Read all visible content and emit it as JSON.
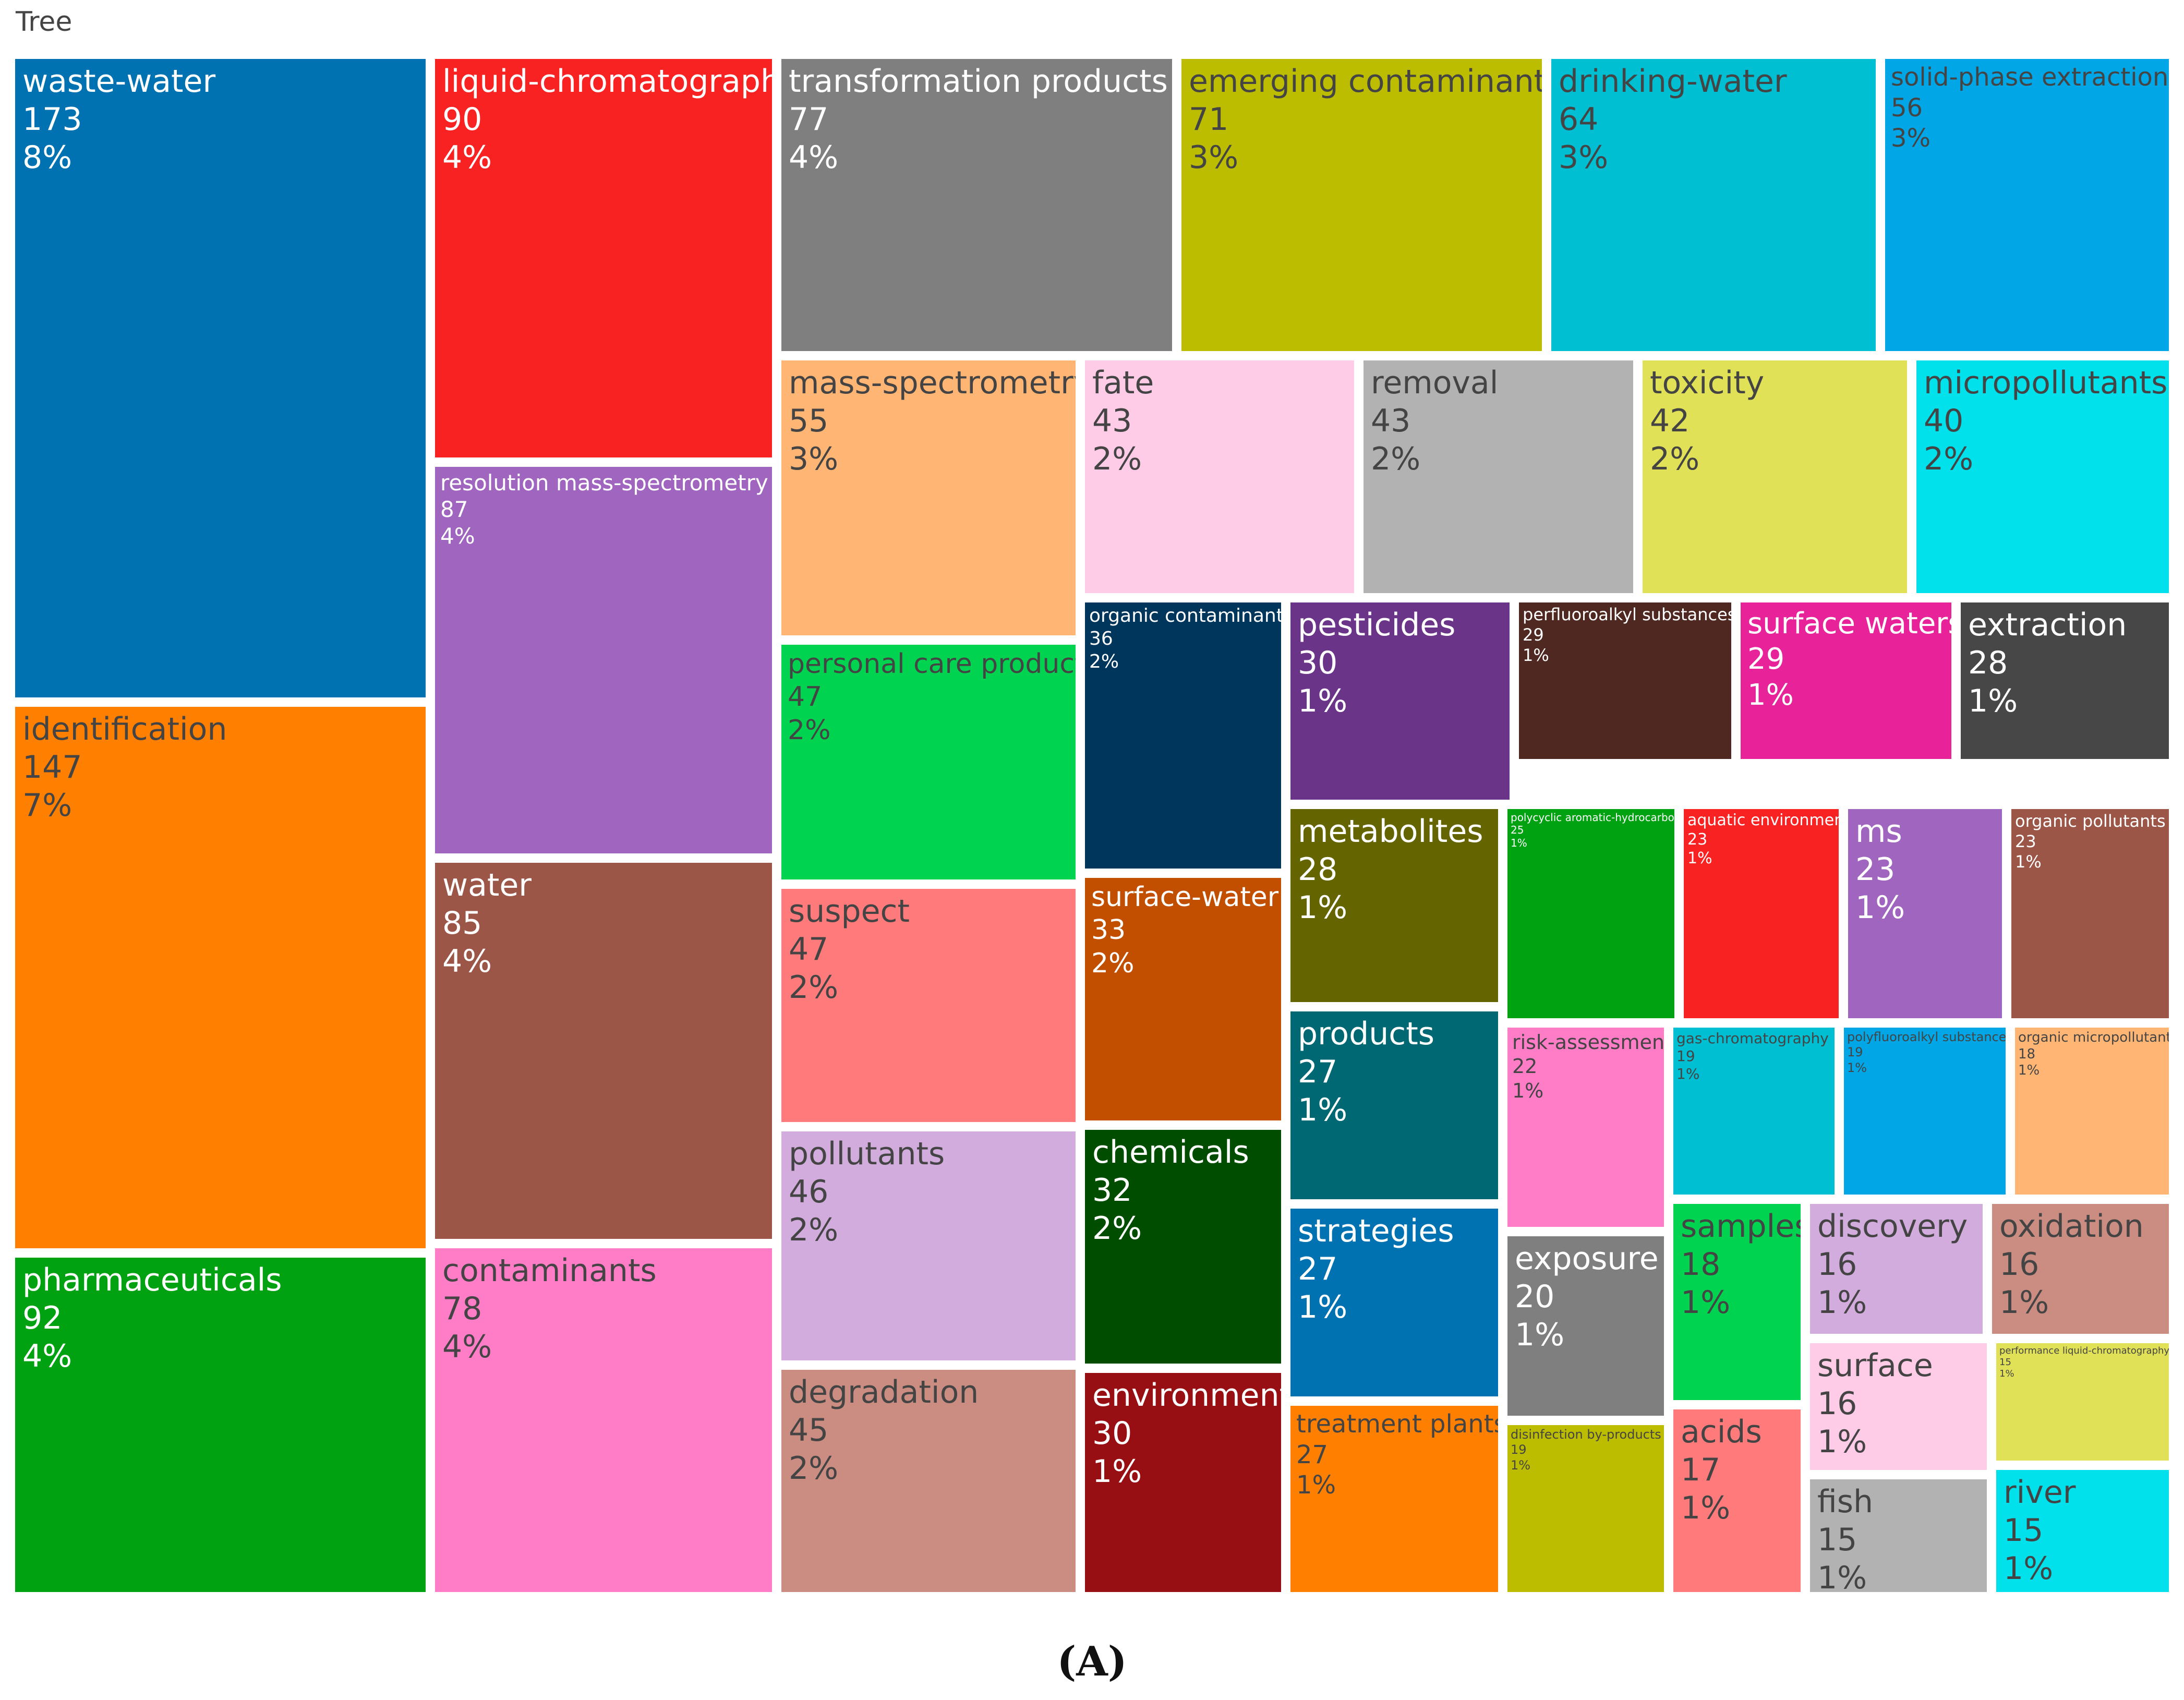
{
  "chart_data": {
    "type": "treemap",
    "title": "Tree",
    "caption": "(A)",
    "tiles": [
      {
        "label": "waste-water",
        "value": 173,
        "percent": "8%",
        "color": "#0072b2"
      },
      {
        "label": "identification",
        "value": 147,
        "percent": "7%",
        "color": "#ff7f00"
      },
      {
        "label": "pharmaceuticals",
        "value": 92,
        "percent": "4%",
        "color": "#00a212"
      },
      {
        "label": "liquid-chromatography",
        "value": 90,
        "percent": "4%",
        "color": "#f92222"
      },
      {
        "label": "resolution mass-spectrometry",
        "value": 87,
        "percent": "4%",
        "color": "#a066bf"
      },
      {
        "label": "water",
        "value": 85,
        "percent": "4%",
        "color": "#9c5648"
      },
      {
        "label": "contaminants",
        "value": 78,
        "percent": "4%",
        "color": "#ff7dc6"
      },
      {
        "label": "transformation products",
        "value": 77,
        "percent": "4%",
        "color": "#7f7f7f"
      },
      {
        "label": "emerging contaminants",
        "value": 71,
        "percent": "3%",
        "color": "#bcbd00"
      },
      {
        "label": "drinking-water",
        "value": 64,
        "percent": "3%",
        "color": "#00bfd2"
      },
      {
        "label": "solid-phase extraction",
        "value": 56,
        "percent": "3%",
        "color": "#00a6e6"
      },
      {
        "label": "mass-spectrometry",
        "value": 55,
        "percent": "3%",
        "color": "#ffb574"
      },
      {
        "label": "fate",
        "value": 43,
        "percent": "2%",
        "color": "#ffcce8"
      },
      {
        "label": "removal",
        "value": 43,
        "percent": "2%",
        "color": "#b2b2b2"
      },
      {
        "label": "toxicity",
        "value": 42,
        "percent": "2%",
        "color": "#e1e157"
      },
      {
        "label": "micropollutants",
        "value": 40,
        "percent": "2%",
        "color": "#00e1ec"
      },
      {
        "label": "personal care products",
        "value": 47,
        "percent": "2%",
        "color": "#00d350"
      },
      {
        "label": "suspect",
        "value": 47,
        "percent": "2%",
        "color": "#ff7b7b"
      },
      {
        "label": "pollutants",
        "value": 46,
        "percent": "2%",
        "color": "#d2acdd"
      },
      {
        "label": "degradation",
        "value": 45,
        "percent": "2%",
        "color": "#cb8d82"
      },
      {
        "label": "organic contaminants",
        "value": 36,
        "percent": "2%",
        "color": "#00365c"
      },
      {
        "label": "surface-water",
        "value": 33,
        "percent": "2%",
        "color": "#c24e00"
      },
      {
        "label": "chemicals",
        "value": 32,
        "percent": "2%",
        "color": "#004d00"
      },
      {
        "label": "environment",
        "value": 30,
        "percent": "1%",
        "color": "#970f12"
      },
      {
        "label": "pesticides",
        "value": 30,
        "percent": "1%",
        "color": "#6a3589"
      },
      {
        "label": "perfluoroalkyl substances",
        "value": 29,
        "percent": "1%",
        "color": "#502822"
      },
      {
        "label": "surface waters",
        "value": 29,
        "percent": "1%",
        "color": "#e8239a"
      },
      {
        "label": "extraction",
        "value": 28,
        "percent": "1%",
        "color": "#474747"
      },
      {
        "label": "metabolites",
        "value": 28,
        "percent": "1%",
        "color": "#646400"
      },
      {
        "label": "products",
        "value": 27,
        "percent": "1%",
        "color": "#006872"
      },
      {
        "label": "strategies",
        "value": 27,
        "percent": "1%",
        "color": "#0072b2"
      },
      {
        "label": "treatment plants",
        "value": 27,
        "percent": "1%",
        "color": "#ff7f00"
      },
      {
        "label": "polycyclic aromatic-hydrocarbons",
        "value": 25,
        "percent": "1%",
        "color": "#00a212"
      },
      {
        "label": "aquatic environment",
        "value": 23,
        "percent": "1%",
        "color": "#f92222"
      },
      {
        "label": "ms",
        "value": 23,
        "percent": "1%",
        "color": "#a066bf"
      },
      {
        "label": "organic pollutants",
        "value": 23,
        "percent": "1%",
        "color": "#9c5648"
      },
      {
        "label": "risk-assessment",
        "value": 22,
        "percent": "1%",
        "color": "#ff7dc6"
      },
      {
        "label": "gas-chromatography",
        "value": 19,
        "percent": "1%",
        "color": "#00bfd2"
      },
      {
        "label": "polyfluoroalkyl substances",
        "value": 19,
        "percent": "1%",
        "color": "#00a6e6"
      },
      {
        "label": "organic micropollutants",
        "value": 18,
        "percent": "1%",
        "color": "#ffb574"
      },
      {
        "label": "exposure",
        "value": 20,
        "percent": "1%",
        "color": "#7f7f7f"
      },
      {
        "label": "disinfection by-products",
        "value": 19,
        "percent": "1%",
        "color": "#bcbd00"
      },
      {
        "label": "samples",
        "value": 18,
        "percent": "1%",
        "color": "#00d350"
      },
      {
        "label": "acids",
        "value": 17,
        "percent": "1%",
        "color": "#ff7b7b"
      },
      {
        "label": "discovery",
        "value": 16,
        "percent": "1%",
        "color": "#d2acdd"
      },
      {
        "label": "oxidation",
        "value": 16,
        "percent": "1%",
        "color": "#cb8d82"
      },
      {
        "label": "surface",
        "value": 16,
        "percent": "1%",
        "color": "#ffcce8"
      },
      {
        "label": "performance liquid-chromatography",
        "value": 15,
        "percent": "1%",
        "color": "#e1e157"
      },
      {
        "label": "fish",
        "value": 15,
        "percent": "1%",
        "color": "#b2b2b2"
      },
      {
        "label": "river",
        "value": 15,
        "percent": "1%",
        "color": "#00e1ec"
      }
    ]
  }
}
